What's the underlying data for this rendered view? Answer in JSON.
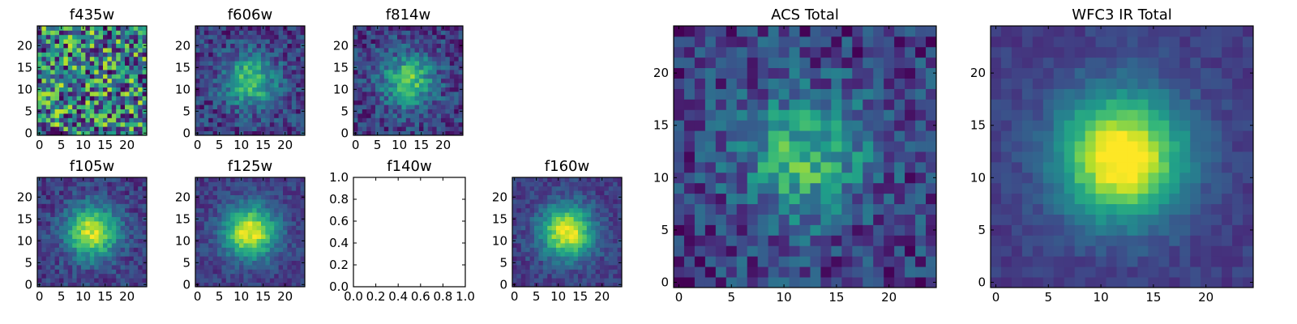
{
  "chart_data": [
    {
      "type": "heatmap",
      "title": "f435w",
      "grid_size": 25,
      "source_peak": 0.0,
      "noise": 0.95,
      "xticks": [
        "0",
        "5",
        "10",
        "15",
        "20"
      ],
      "yticks": [
        "0",
        "5",
        "10",
        "15",
        "20"
      ],
      "xlim": [
        -0.5,
        24.5
      ],
      "ylim": [
        -0.5,
        24.5
      ],
      "colormap": "viridis"
    },
    {
      "type": "heatmap",
      "title": "f606w",
      "grid_size": 25,
      "source_peak": 0.55,
      "noise": 0.35,
      "xticks": [
        "0",
        "5",
        "10",
        "15",
        "20"
      ],
      "yticks": [
        "0",
        "5",
        "10",
        "15",
        "20"
      ],
      "xlim": [
        -0.5,
        24.5
      ],
      "ylim": [
        -0.5,
        24.5
      ],
      "colormap": "viridis"
    },
    {
      "type": "heatmap",
      "title": "f814w",
      "grid_size": 25,
      "source_peak": 0.55,
      "noise": 0.35,
      "xticks": [
        "0",
        "5",
        "10",
        "15",
        "20"
      ],
      "yticks": [
        "0",
        "5",
        "10",
        "15",
        "20"
      ],
      "xlim": [
        -0.5,
        24.5
      ],
      "ylim": [
        -0.5,
        24.5
      ],
      "colormap": "viridis"
    },
    {
      "type": "heatmap",
      "title": "f105w",
      "grid_size": 25,
      "source_peak": 0.75,
      "noise": 0.25,
      "xticks": [
        "0",
        "5",
        "10",
        "15",
        "20"
      ],
      "yticks": [
        "0",
        "5",
        "10",
        "15",
        "20"
      ],
      "xlim": [
        -0.5,
        24.5
      ],
      "ylim": [
        -0.5,
        24.5
      ],
      "colormap": "viridis"
    },
    {
      "type": "heatmap",
      "title": "f125w",
      "grid_size": 25,
      "source_peak": 0.8,
      "noise": 0.2,
      "xticks": [
        "0",
        "5",
        "10",
        "15",
        "20"
      ],
      "yticks": [
        "0",
        "5",
        "10",
        "15",
        "20"
      ],
      "xlim": [
        -0.5,
        24.5
      ],
      "ylim": [
        -0.5,
        24.5
      ],
      "colormap": "viridis"
    },
    {
      "type": "empty",
      "title": "f140w",
      "xticks": [
        "0.0",
        "0.2",
        "0.4",
        "0.6",
        "0.8",
        "1.0"
      ],
      "yticks": [
        "0.0",
        "0.2",
        "0.4",
        "0.6",
        "0.8",
        "1.0"
      ],
      "xlim": [
        0,
        1
      ],
      "ylim": [
        0,
        1
      ]
    },
    {
      "type": "heatmap",
      "title": "f160w",
      "grid_size": 25,
      "source_peak": 0.8,
      "noise": 0.2,
      "xticks": [
        "0",
        "5",
        "10",
        "15",
        "20"
      ],
      "yticks": [
        "0",
        "5",
        "10",
        "15",
        "20"
      ],
      "xlim": [
        -0.5,
        24.5
      ],
      "ylim": [
        -0.5,
        24.5
      ],
      "colormap": "viridis"
    },
    {
      "type": "heatmap",
      "title": "ACS Total",
      "grid_size": 25,
      "source_peak": 0.5,
      "noise": 0.4,
      "xticks": [
        "0",
        "5",
        "10",
        "15",
        "20"
      ],
      "yticks": [
        "0",
        "5",
        "10",
        "15",
        "20"
      ],
      "xlim": [
        -0.5,
        24.5
      ],
      "ylim": [
        -0.5,
        24.5
      ],
      "colormap": "viridis"
    },
    {
      "type": "heatmap",
      "title": "WFC3 IR Total",
      "grid_size": 25,
      "source_peak": 0.9,
      "noise": 0.12,
      "xticks": [
        "0",
        "5",
        "10",
        "15",
        "20"
      ],
      "yticks": [
        "0",
        "5",
        "10",
        "15",
        "20"
      ],
      "xlim": [
        -0.5,
        24.5
      ],
      "ylim": [
        -0.5,
        24.5
      ],
      "colormap": "viridis"
    }
  ]
}
